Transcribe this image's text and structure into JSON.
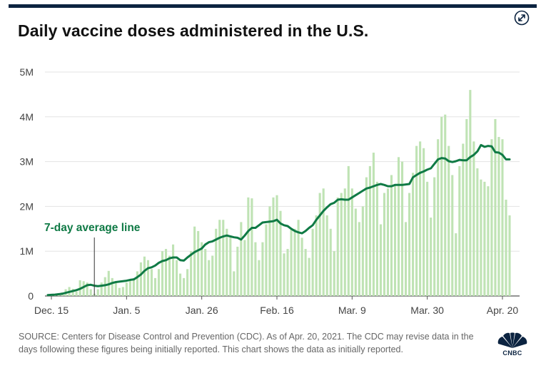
{
  "header": {
    "title": "Daily vaccine doses administered in the U.S."
  },
  "footer": {
    "source": "SOURCE: Centers for Disease Control and Prevention (CDC). As of Apr. 20, 2021. The CDC may revise data in the days following these figures being initially reported. This chart shows the data as initially reported.",
    "logo_text": "CNBC"
  },
  "icons": {
    "expand": "expand-arrows-icon",
    "logo": "peacock-logo"
  },
  "colors": {
    "bar": "#bfe3b4",
    "line": "#0f7a45",
    "annotation": "#0f7a45",
    "title": "#111111"
  },
  "chart_data": {
    "type": "bar",
    "title": "Daily vaccine doses administered in the U.S.",
    "xlabel": "",
    "ylabel": "",
    "ylim": [
      0,
      5000000
    ],
    "yticks": [
      0,
      1000000,
      2000000,
      3000000,
      4000000,
      5000000
    ],
    "ytick_labels": [
      "0",
      "1M",
      "2M",
      "3M",
      "4M",
      "5M"
    ],
    "x_start": "Dec. 14",
    "x_end": "Apr. 20",
    "xtick_labels": [
      "Dec. 15",
      "Jan. 5",
      "Jan. 26",
      "Feb. 16",
      "Mar. 9",
      "Mar. 30",
      "Apr. 20"
    ],
    "xtick_dates": [
      "Dec. 15",
      "Jan. 5",
      "Jan. 26",
      "Feb. 16",
      "Mar. 9",
      "Mar. 30",
      "Apr. 20"
    ],
    "grid": true,
    "annotation": {
      "text": "7-day average line",
      "date": "Dec. 27"
    },
    "series": [
      {
        "type": "bar",
        "values": [
          20000,
          30000,
          40000,
          60000,
          80000,
          150000,
          200000,
          160000,
          100000,
          350000,
          330000,
          300000,
          150000,
          50000,
          150000,
          300000,
          420000,
          560000,
          400000,
          300000,
          180000,
          200000,
          300000,
          350000,
          400000,
          550000,
          750000,
          880000,
          800000,
          600000,
          400000,
          600000,
          1000000,
          1050000,
          900000,
          1150000,
          800000,
          500000,
          400000,
          600000,
          1000000,
          1550000,
          1450000,
          1200000,
          1050000,
          800000,
          900000,
          1500000,
          1700000,
          1700000,
          1500000,
          1300000,
          550000,
          1100000,
          1650000,
          1250000,
          2200000,
          2180000,
          1200000,
          800000,
          1200000,
          1600000,
          2000000,
          2200000,
          2250000,
          1900000,
          950000,
          1050000,
          1500000,
          1500000,
          1700000,
          1300000,
          1050000,
          850000,
          1500000,
          1800000,
          2300000,
          2400000,
          1800000,
          1500000,
          1000000,
          2200000,
          2300000,
          2400000,
          2900000,
          2400000,
          1950000,
          1650000,
          2000000,
          2650000,
          2900000,
          3200000,
          2550000,
          1600000,
          2300000,
          2400000,
          2700000,
          2500000,
          3100000,
          3000000,
          1650000,
          2300000,
          2750000,
          3350000,
          3450000,
          3300000,
          2550000,
          1750000,
          2650000,
          3500000,
          4000000,
          4050000,
          3350000,
          2700000,
          1400000,
          2900000,
          3400000,
          3950000,
          4600000,
          3450000,
          2850000,
          2600000,
          2550000,
          2450000,
          3500000,
          3950000,
          3550000,
          3500000,
          2150000,
          1800000
        ]
      },
      {
        "type": "line",
        "name": "7-day average line",
        "values": [
          20000,
          25000,
          30000,
          40000,
          50000,
          70000,
          90000,
          110000,
          130000,
          160000,
          200000,
          240000,
          250000,
          230000,
          220000,
          230000,
          240000,
          260000,
          290000,
          310000,
          320000,
          330000,
          340000,
          360000,
          370000,
          420000,
          480000,
          560000,
          620000,
          640000,
          680000,
          740000,
          780000,
          800000,
          840000,
          860000,
          860000,
          800000,
          790000,
          860000,
          920000,
          980000,
          1020000,
          1060000,
          1150000,
          1200000,
          1220000,
          1260000,
          1300000,
          1330000,
          1350000,
          1330000,
          1310000,
          1300000,
          1260000,
          1350000,
          1450000,
          1520000,
          1520000,
          1580000,
          1640000,
          1650000,
          1660000,
          1670000,
          1700000,
          1620000,
          1580000,
          1560000,
          1500000,
          1450000,
          1420000,
          1400000,
          1450000,
          1520000,
          1580000,
          1700000,
          1800000,
          1900000,
          1980000,
          2050000,
          2080000,
          2150000,
          2160000,
          2150000,
          2150000,
          2200000,
          2250000,
          2300000,
          2350000,
          2400000,
          2420000,
          2450000,
          2480000,
          2500000,
          2480000,
          2450000,
          2450000,
          2480000,
          2480000,
          2480000,
          2490000,
          2500000,
          2650000,
          2700000,
          2750000,
          2780000,
          2820000,
          2850000,
          2950000,
          3050000,
          3080000,
          3070000,
          3010000,
          2990000,
          3010000,
          3040000,
          3030000,
          3030000,
          3100000,
          3150000,
          3230000,
          3370000,
          3330000,
          3350000,
          3340000,
          3210000,
          3200000,
          3150000,
          3050000,
          3050000
        ]
      }
    ]
  }
}
